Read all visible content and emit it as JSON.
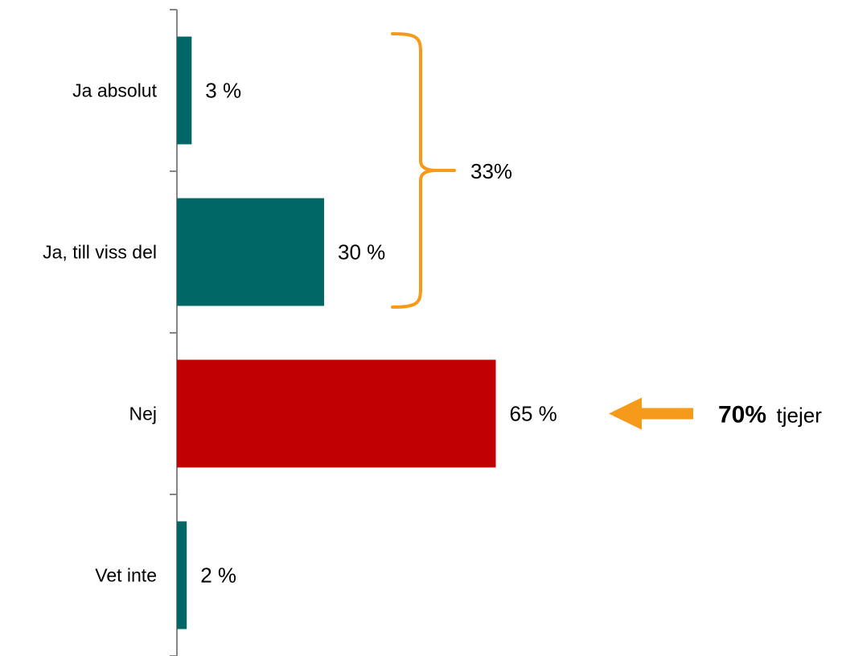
{
  "chart_data": {
    "type": "bar",
    "orientation": "horizontal",
    "categories": [
      "Ja absolut",
      "Ja, till viss del",
      "Nej",
      "Vet inte"
    ],
    "values": [
      3,
      30,
      65,
      2
    ],
    "value_labels": [
      "3 %",
      "30 %",
      "65 %",
      "2 %"
    ],
    "bar_colors": [
      "#006766",
      "#006766",
      "#c00000",
      "#006766"
    ],
    "xlim": [
      0,
      100
    ],
    "grid": false,
    "legend": "none",
    "annotations": {
      "bracket": {
        "covers_categories": [
          "Ja absolut",
          "Ja, till viss del"
        ],
        "label": "33%",
        "color": "#f59a1b"
      },
      "callout": {
        "target_category": "Nej",
        "value": "70%",
        "text": "tjejer",
        "arrow_color": "#f59a1b"
      }
    }
  }
}
